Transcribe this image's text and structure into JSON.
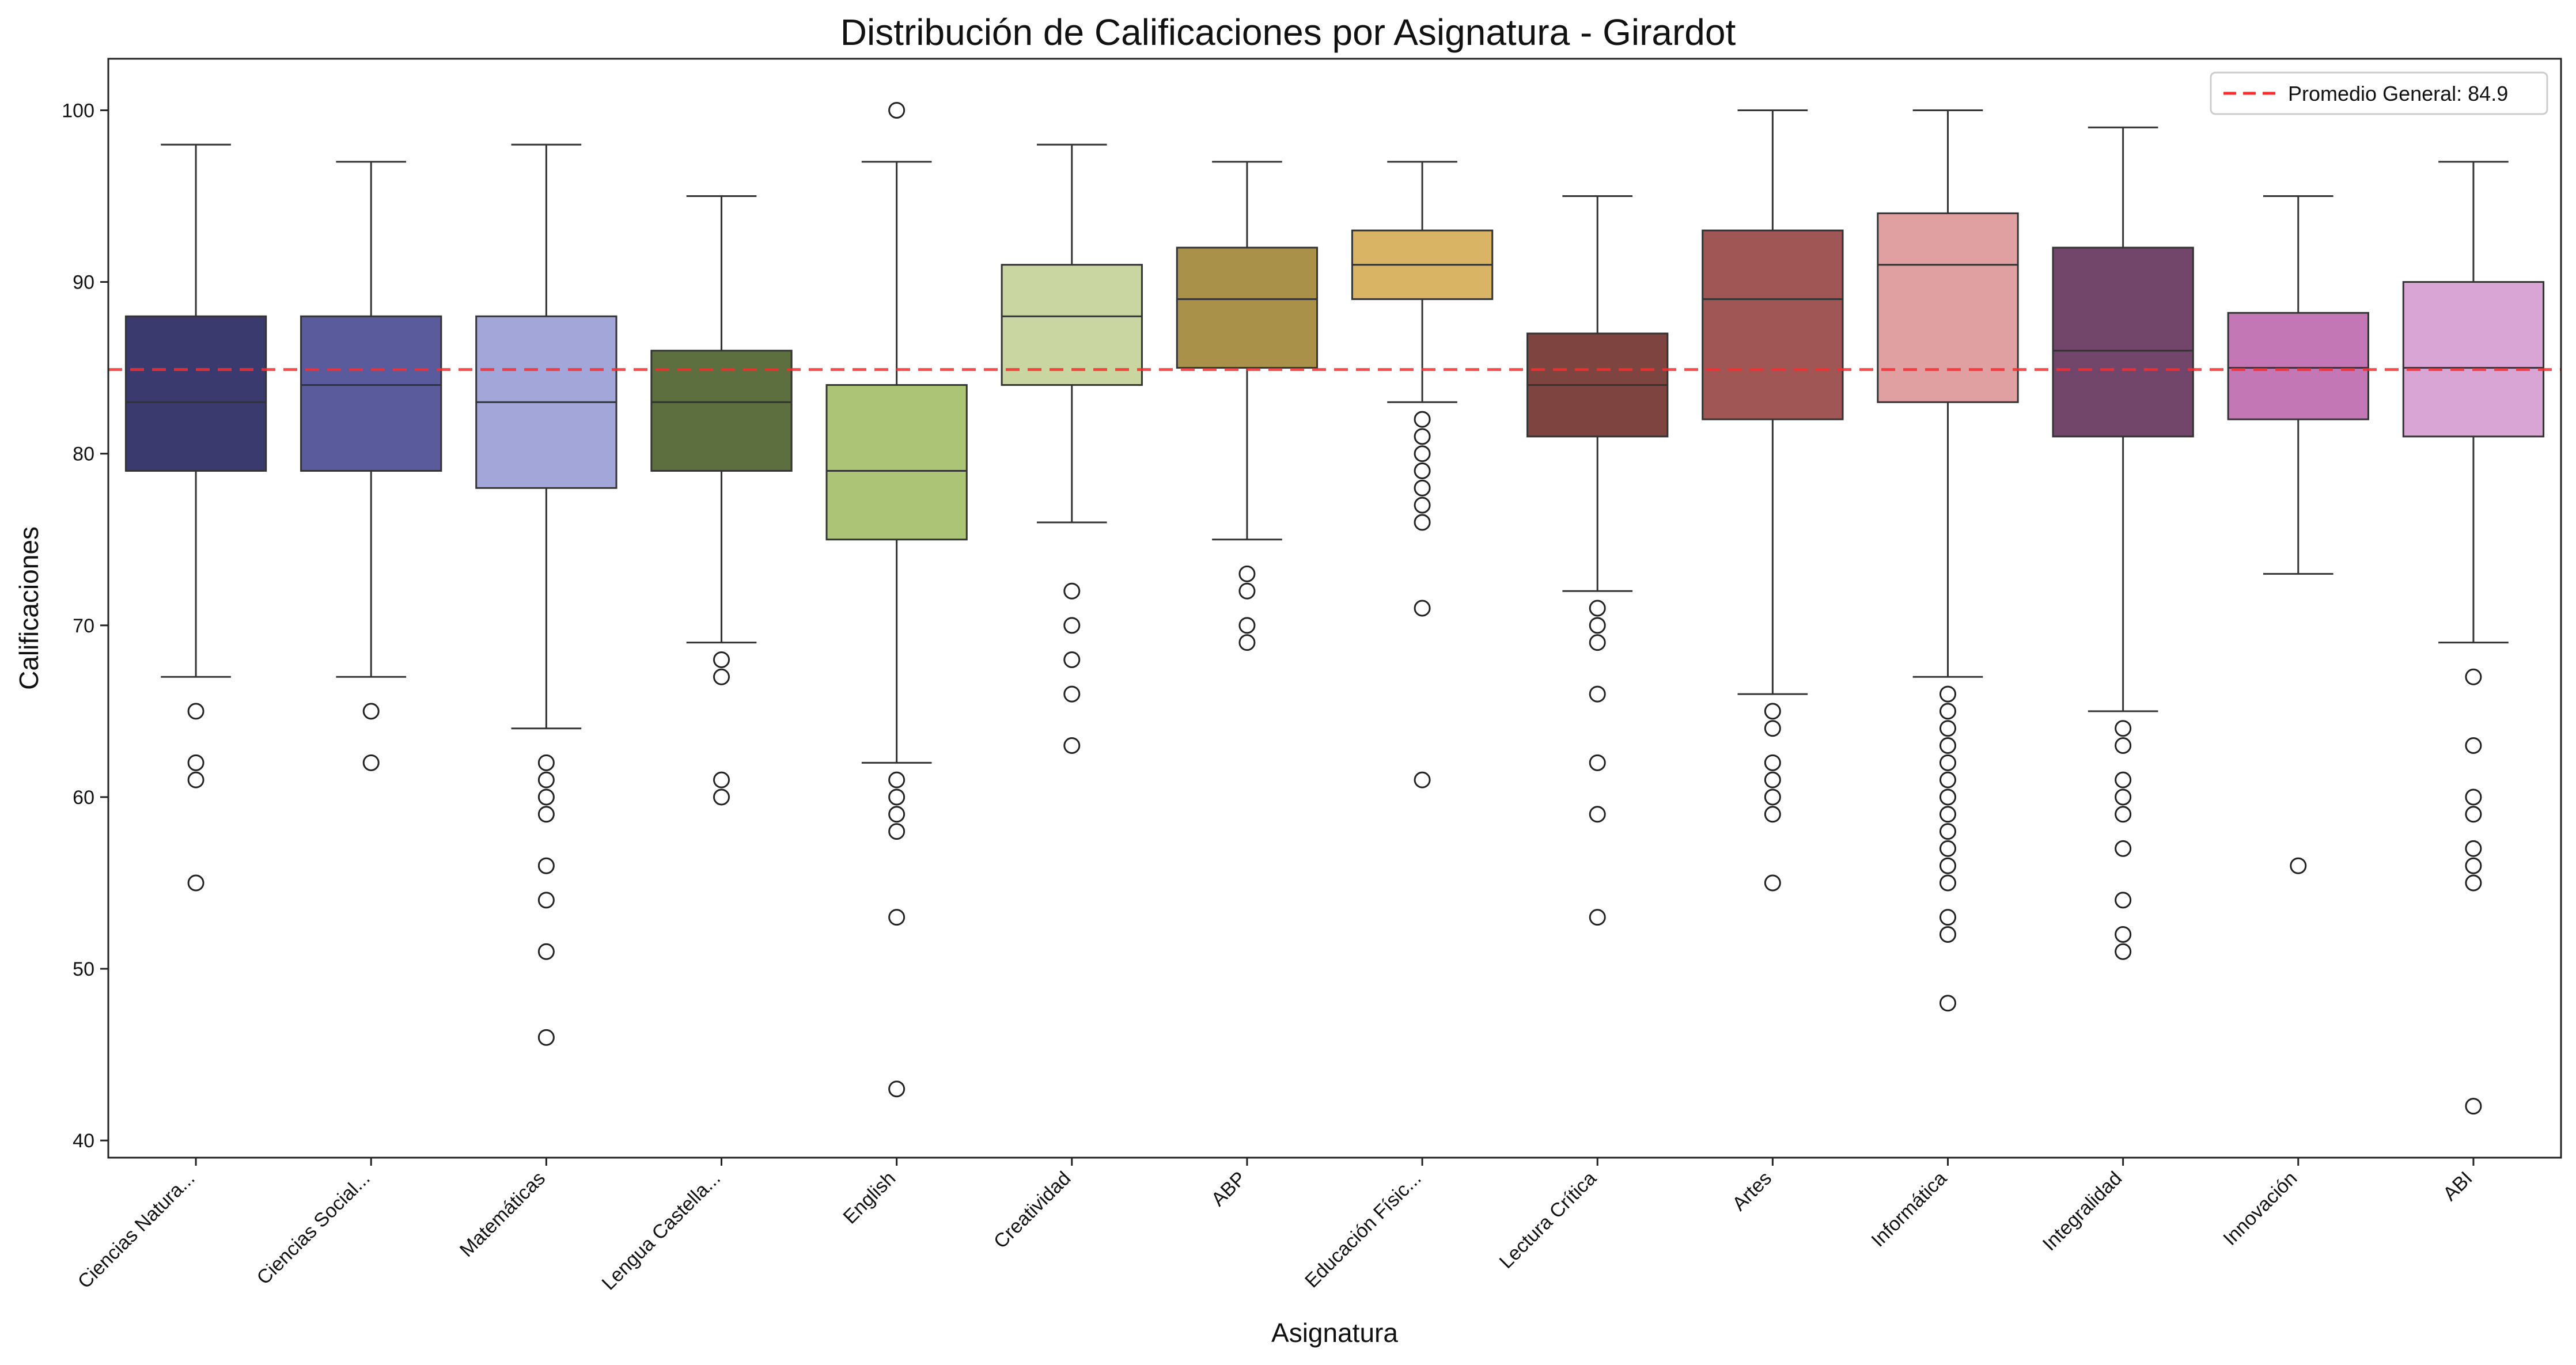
{
  "chart_data": {
    "type": "boxplot",
    "title": "Distribución de Calificaciones por Asignatura - Girardot",
    "xlabel": "Asignatura",
    "ylabel": "Calificaciones",
    "ylim": [
      39,
      103
    ],
    "yticks": [
      40,
      50,
      60,
      70,
      80,
      90,
      100
    ],
    "grid": false,
    "legend": {
      "position": "top-right",
      "entries": [
        "Promedio General: 84.9"
      ]
    },
    "reference_line": {
      "label": "Promedio General: 84.9",
      "value": 84.9,
      "color": "#ff2b2b",
      "style": "dashed"
    },
    "categories": [
      "Ciencias Natura...",
      "Ciencias Social...",
      "Matemáticas",
      "Lengua Castella...",
      "English",
      "Creatividad",
      "ABP",
      "Educación Físic...",
      "Lectura Crítica",
      "Artes",
      "Informática",
      "Integralidad",
      "Innovación",
      "ABI"
    ],
    "boxes": [
      {
        "name": "Ciencias Natura...",
        "color": "#3b3a6e",
        "whisker_low": 67,
        "q1": 79,
        "median": 83,
        "q3": 88,
        "whisker_high": 98,
        "outliers": [
          65,
          62,
          61,
          55
        ]
      },
      {
        "name": "Ciencias Social...",
        "color": "#5a5b9c",
        "whisker_low": 67,
        "q1": 79,
        "median": 84,
        "q3": 88,
        "whisker_high": 97,
        "outliers": [
          65,
          62
        ]
      },
      {
        "name": "Matemáticas",
        "color": "#a2a6d8",
        "whisker_low": 64,
        "q1": 78,
        "median": 83,
        "q3": 88,
        "whisker_high": 98,
        "outliers": [
          62,
          61,
          60,
          59,
          56,
          54,
          51,
          46
        ]
      },
      {
        "name": "Lengua Castella...",
        "color": "#5d6e3f",
        "whisker_low": 69,
        "q1": 79,
        "median": 83,
        "q3": 86,
        "whisker_high": 95,
        "outliers": [
          68,
          67,
          61,
          60
        ]
      },
      {
        "name": "English",
        "color": "#acc476",
        "whisker_low": 62,
        "q1": 75,
        "median": 79,
        "q3": 84,
        "whisker_high": 97,
        "outliers": [
          100,
          61,
          60,
          59,
          58,
          53,
          43
        ]
      },
      {
        "name": "Creatividad",
        "color": "#c9d6a1",
        "whisker_low": 76,
        "q1": 84,
        "median": 88,
        "q3": 91,
        "whisker_high": 98,
        "outliers": [
          72,
          70,
          68,
          66,
          63
        ]
      },
      {
        "name": "ABP",
        "color": "#a9914a",
        "whisker_low": 75,
        "q1": 85,
        "median": 89,
        "q3": 92,
        "whisker_high": 97,
        "outliers": [
          73,
          72,
          70,
          69
        ]
      },
      {
        "name": "Educación Físic...",
        "color": "#d9b465",
        "whisker_low": 83,
        "q1": 89,
        "median": 91,
        "q3": 93,
        "whisker_high": 97,
        "outliers": [
          82,
          81,
          80,
          79,
          78,
          77,
          76,
          71,
          61
        ]
      },
      {
        "name": "Lectura Crítica",
        "color": "#7d4440",
        "whisker_low": 72,
        "q1": 81,
        "median": 84,
        "q3": 87,
        "whisker_high": 95,
        "outliers": [
          71,
          70,
          69,
          66,
          62,
          59,
          53
        ]
      },
      {
        "name": "Artes",
        "color": "#a15656",
        "whisker_low": 66,
        "q1": 82,
        "median": 89,
        "q3": 93,
        "whisker_high": 100,
        "outliers": [
          65,
          64,
          62,
          61,
          60,
          59,
          55
        ]
      },
      {
        "name": "Informática",
        "color": "#e0a0a2",
        "whisker_low": 67,
        "q1": 83,
        "median": 91,
        "q3": 94,
        "whisker_high": 100,
        "outliers": [
          66,
          65,
          64,
          63,
          62,
          61,
          60,
          59,
          58,
          57,
          56,
          55,
          53,
          52,
          48
        ]
      },
      {
        "name": "Integralidad",
        "color": "#72456b",
        "whisker_low": 65,
        "q1": 81,
        "median": 86,
        "q3": 92,
        "whisker_high": 99,
        "outliers": [
          64,
          63,
          61,
          60,
          59,
          57,
          54,
          52,
          51
        ]
      },
      {
        "name": "Innovación",
        "color": "#c477b5",
        "whisker_low": 73,
        "q1": 82,
        "median": 85,
        "q3": 88.2,
        "whisker_high": 95,
        "outliers": [
          56
        ]
      },
      {
        "name": "ABI",
        "color": "#d8a5d4",
        "whisker_low": 69,
        "q1": 81,
        "median": 85,
        "q3": 90,
        "whisker_high": 97,
        "outliers": [
          67,
          63,
          60,
          59,
          57,
          56,
          55,
          42
        ]
      }
    ]
  }
}
